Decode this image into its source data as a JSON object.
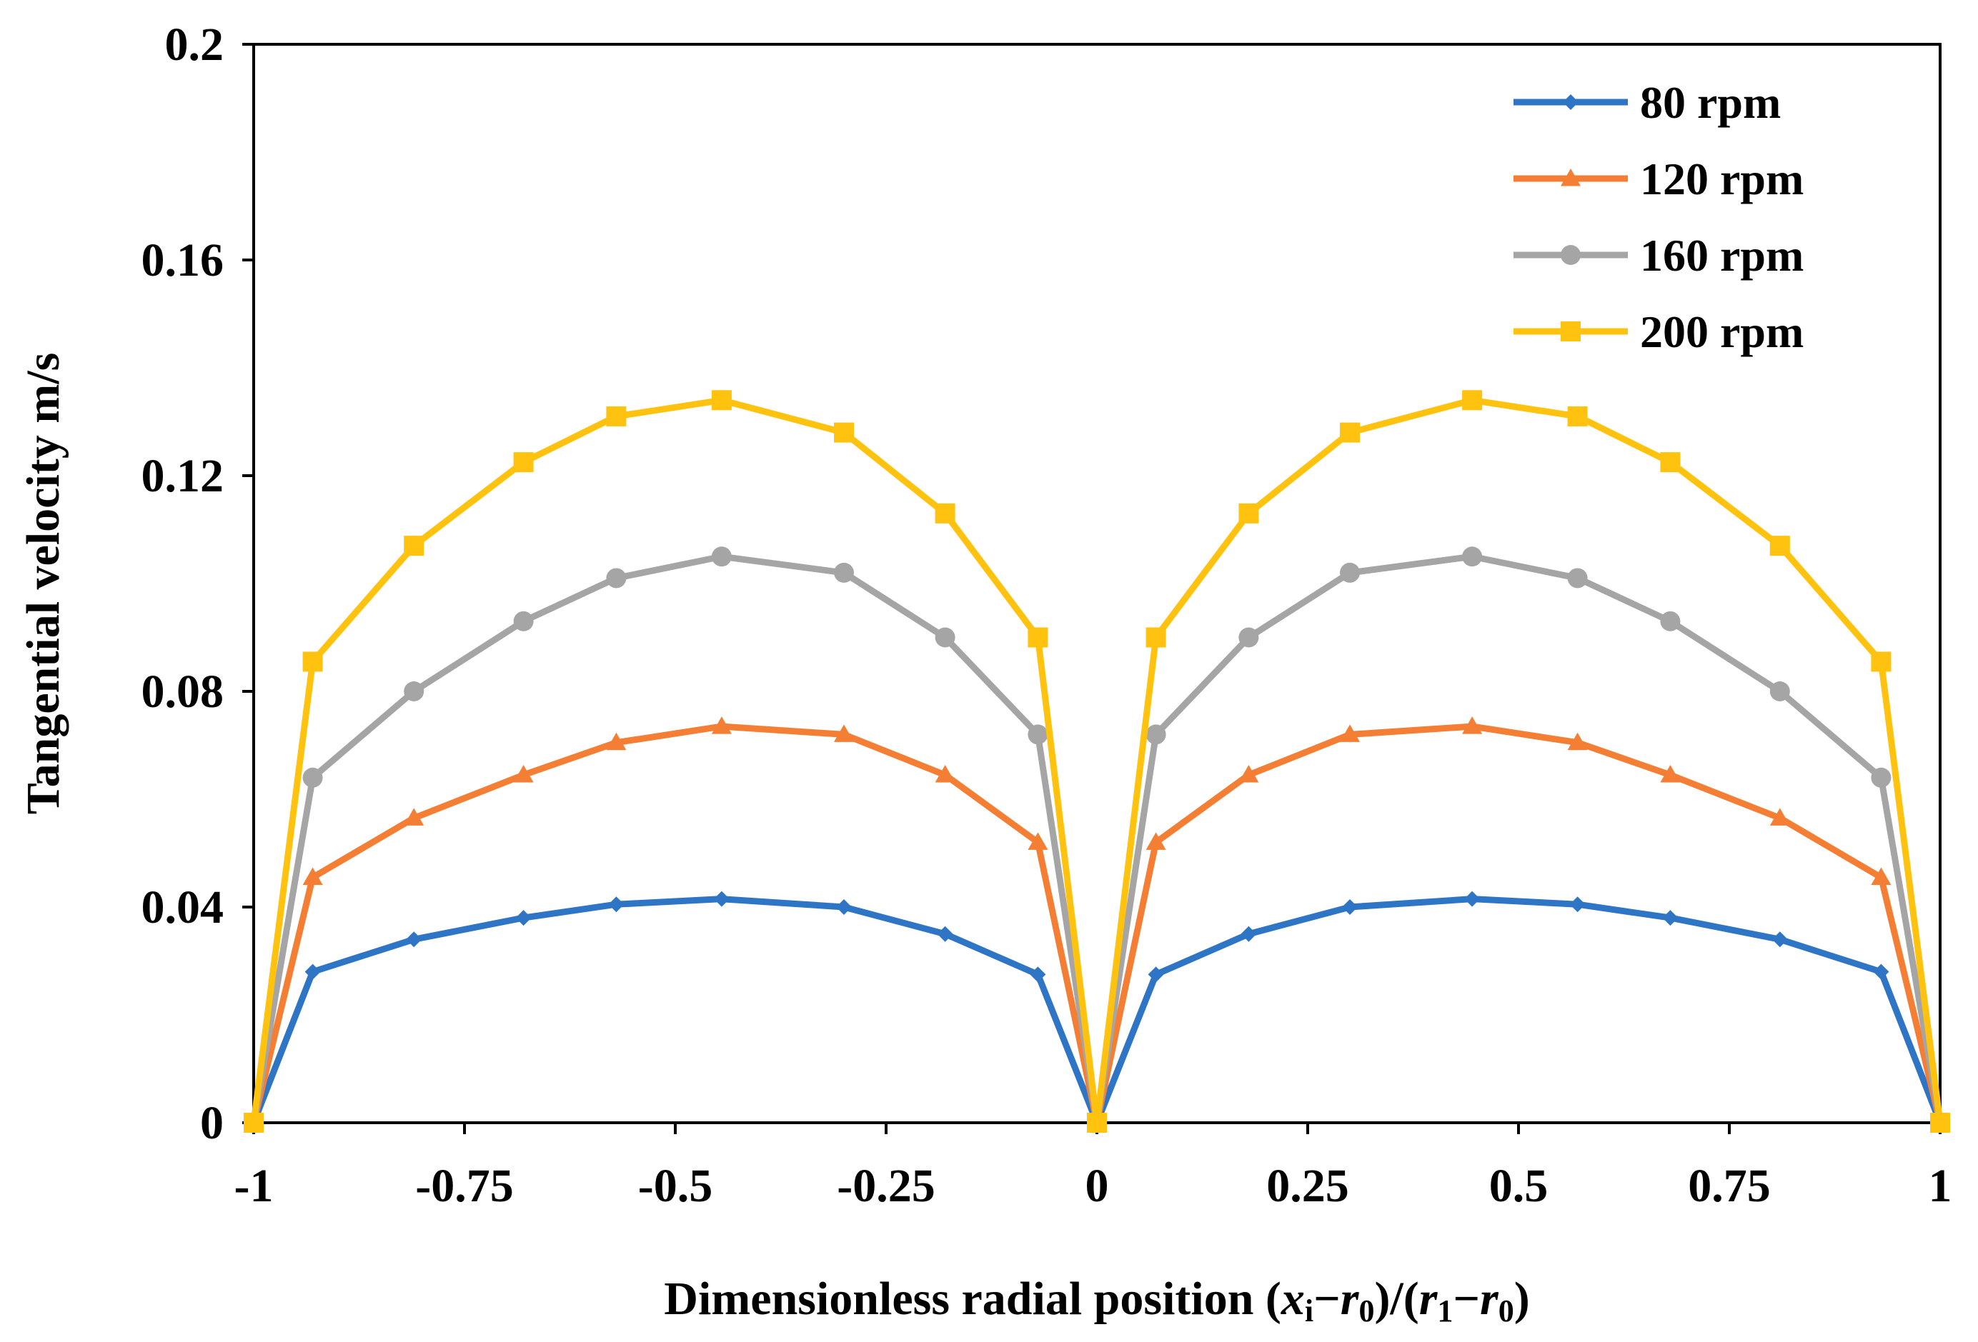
{
  "chart_data": {
    "type": "line",
    "xlabel": {
      "parts": [
        {
          "text": "Dimensionless radial position ("
        },
        {
          "text": "x",
          "italic": true
        },
        {
          "text": "i",
          "sub": true
        },
        {
          "text": "−"
        },
        {
          "text": "r",
          "italic": true
        },
        {
          "text": "0",
          "sub": true
        },
        {
          "text": ")/("
        },
        {
          "text": "r",
          "italic": true
        },
        {
          "text": "1",
          "sub": true
        },
        {
          "text": "−"
        },
        {
          "text": "r",
          "italic": true
        },
        {
          "text": "0",
          "sub": true
        },
        {
          "text": ")"
        }
      ]
    },
    "ylabel": "Tangential velocity m/s",
    "xlim": [
      -1,
      1
    ],
    "ylim": [
      0,
      0.2
    ],
    "xticks": [
      -1,
      -0.75,
      -0.5,
      -0.25,
      0,
      0.25,
      0.5,
      0.75,
      1
    ],
    "xtick_labels": [
      "-1",
      "-0.75",
      "-0.5",
      "-0.25",
      "0",
      "0.25",
      "0.5",
      "0.75",
      "1"
    ],
    "yticks": [
      0,
      0.04,
      0.08,
      0.12,
      0.16,
      0.2
    ],
    "ytick_labels": [
      "0",
      "0.04",
      "0.08",
      "0.12",
      "0.16",
      "0.2"
    ],
    "grid": false,
    "legend_position": "top-right",
    "x": [
      -1,
      -0.93,
      -0.81,
      -0.68,
      -0.57,
      -0.445,
      -0.3,
      -0.18,
      -0.07,
      0,
      0.07,
      0.18,
      0.3,
      0.445,
      0.57,
      0.68,
      0.81,
      0.93,
      1
    ],
    "series": [
      {
        "name": "80 rpm",
        "color": "#2E75C6",
        "marker": "diamond",
        "values": [
          0,
          0.028,
          0.034,
          0.038,
          0.0405,
          0.0415,
          0.04,
          0.035,
          0.0275,
          0,
          0.0275,
          0.035,
          0.04,
          0.0415,
          0.0405,
          0.038,
          0.034,
          0.028,
          0
        ]
      },
      {
        "name": "120 rpm",
        "color": "#F47F34",
        "marker": "triangle",
        "values": [
          0,
          0.0455,
          0.0565,
          0.0645,
          0.0705,
          0.0735,
          0.072,
          0.0645,
          0.052,
          0,
          0.052,
          0.0645,
          0.072,
          0.0735,
          0.0705,
          0.0645,
          0.0565,
          0.0455,
          0
        ]
      },
      {
        "name": "160 rpm",
        "color": "#A5A5A5",
        "marker": "circle",
        "values": [
          0,
          0.064,
          0.08,
          0.093,
          0.101,
          0.105,
          0.102,
          0.09,
          0.072,
          0,
          0.072,
          0.09,
          0.102,
          0.105,
          0.101,
          0.093,
          0.08,
          0.064,
          0
        ]
      },
      {
        "name": "200 rpm",
        "color": "#FFC20E",
        "marker": "square",
        "values": [
          0,
          0.0855,
          0.107,
          0.1225,
          0.131,
          0.134,
          0.128,
          0.113,
          0.09,
          0,
          0.09,
          0.113,
          0.128,
          0.134,
          0.131,
          0.1225,
          0.107,
          0.0855,
          0
        ]
      }
    ]
  }
}
